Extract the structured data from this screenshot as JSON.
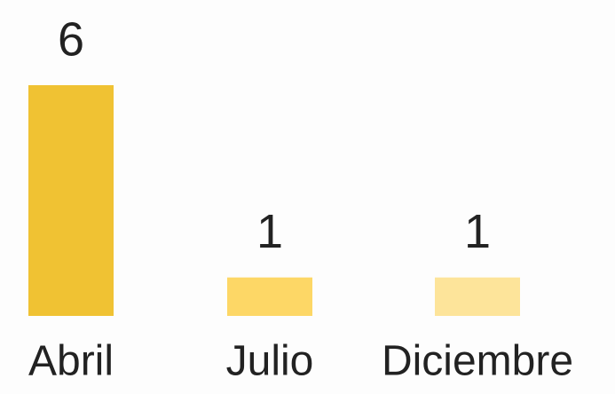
{
  "chart_data": {
    "type": "bar",
    "categories": [
      "Abril",
      "Julio",
      "Diciembre"
    ],
    "values": [
      6,
      1,
      1
    ],
    "colors": [
      "#f0c233",
      "#fdd766",
      "#fde49a"
    ]
  }
}
